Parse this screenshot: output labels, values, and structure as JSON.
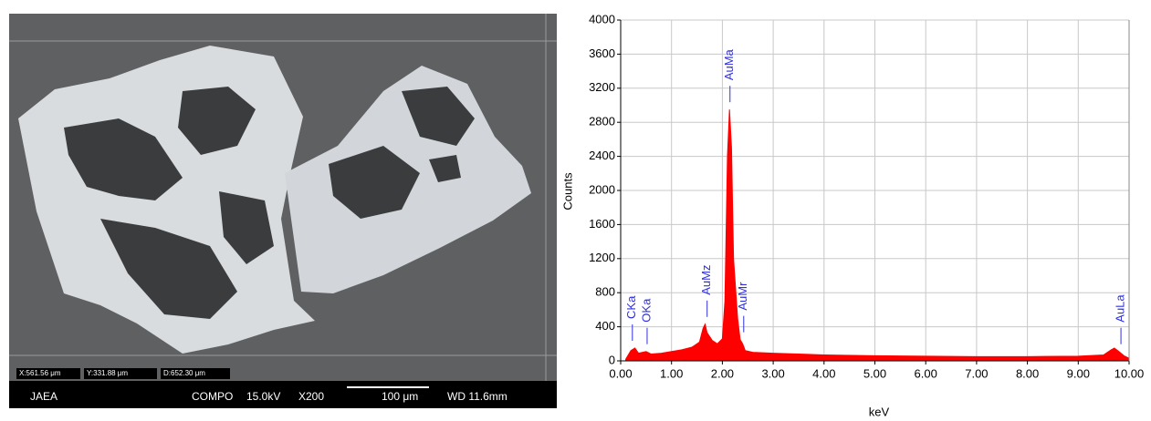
{
  "sem_image": {
    "coordinates": [
      "X:561.56 μm",
      "Y:331.88 μm",
      "D:652.30 μm"
    ],
    "info_bar": {
      "lab": "JAEA",
      "mode": "COMPO",
      "voltage": "15.0kV",
      "magnification": "X200",
      "scale_bar": "100 μm",
      "working_distance": "WD 11.6mm"
    }
  },
  "chart_data": {
    "type": "area",
    "xlabel": "keV",
    "ylabel": "Counts",
    "color": "#ff0000",
    "annotation_color": "#3030e0",
    "x": [
      0.1,
      0.2,
      0.28,
      0.35,
      0.5,
      0.6,
      0.8,
      1.0,
      1.2,
      1.4,
      1.55,
      1.62,
      1.66,
      1.7,
      1.8,
      1.9,
      2.0,
      2.05,
      2.1,
      2.14,
      2.18,
      2.22,
      2.3,
      2.35,
      2.4,
      2.45,
      2.6,
      3.0,
      3.5,
      4.0,
      5.0,
      6.0,
      7.0,
      8.0,
      9.0,
      9.5,
      9.65,
      9.71,
      9.8,
      9.9,
      10.0
    ],
    "values": [
      20,
      120,
      150,
      90,
      110,
      80,
      90,
      110,
      130,
      160,
      220,
      380,
      430,
      330,
      240,
      200,
      260,
      700,
      2400,
      2950,
      2500,
      1200,
      500,
      250,
      200,
      120,
      100,
      90,
      80,
      70,
      60,
      55,
      50,
      50,
      55,
      70,
      130,
      150,
      110,
      60,
      30
    ],
    "xlim": [
      0,
      10
    ],
    "ylim": [
      0,
      4000
    ],
    "xticks": [
      {
        "value": 0,
        "label": "0.00"
      },
      {
        "value": 1,
        "label": "1.00"
      },
      {
        "value": 2,
        "label": "2.00"
      },
      {
        "value": 3,
        "label": "3.00"
      },
      {
        "value": 4,
        "label": "4.00"
      },
      {
        "value": 5,
        "label": "5.00"
      },
      {
        "value": 6,
        "label": "6.00"
      },
      {
        "value": 7,
        "label": "7.00"
      },
      {
        "value": 8,
        "label": "8.00"
      },
      {
        "value": 9,
        "label": "9.00"
      },
      {
        "value": 10,
        "label": "10.00"
      }
    ],
    "yticks": [
      0,
      400,
      800,
      1200,
      1600,
      2000,
      2400,
      2800,
      3200,
      3600,
      4000
    ],
    "grid": true,
    "annotations": [
      {
        "text": "CKa",
        "x": 0.23
      },
      {
        "text": "OKa",
        "x": 0.52
      },
      {
        "text": "AuMz",
        "x": 1.7
      },
      {
        "text": "AuMa",
        "x": 2.15
      },
      {
        "text": "AuMr",
        "x": 2.42
      },
      {
        "text": "AuLa",
        "x": 9.84
      }
    ]
  }
}
